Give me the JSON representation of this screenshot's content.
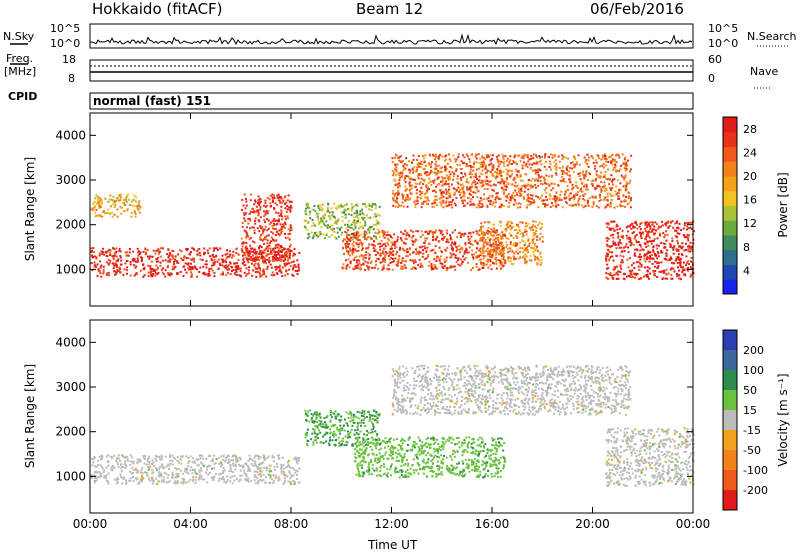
{
  "header": {
    "station": "Hokkaido (fitACF)",
    "beam": "Beam 12",
    "date": "06/Feb/2016"
  },
  "strip": {
    "nsky_label": "N.Sky",
    "nsearch_label": "N.Search",
    "noise_ticks": [
      "10^5",
      "10^0"
    ],
    "freq_label_1": "Freq.",
    "freq_label_2": "[MHz]",
    "freq_ticks": [
      "18",
      "8"
    ],
    "nave_label": "Nave",
    "nave_ticks": [
      "60",
      "0"
    ],
    "cpid_label": "CPID",
    "cpid_text": "normal (fast) 151"
  },
  "chart_data": [
    {
      "type": "heatmap",
      "panel": "power",
      "xlabel": "Time UT",
      "ylabel": "Slant Range [km]",
      "x_ticks": [
        "00:00",
        "04:00",
        "08:00",
        "12:00",
        "16:00",
        "20:00",
        "00:00"
      ],
      "xlim_hours": [
        0,
        24
      ],
      "y_ticks": [
        1000,
        2000,
        3000,
        4000
      ],
      "ylim": [
        180,
        4500
      ],
      "colorbar": {
        "label": "Power [dB]",
        "ticks": [
          4,
          8,
          12,
          16,
          20,
          24,
          28
        ],
        "range": [
          0,
          30
        ],
        "colors": [
          "#1a23e6",
          "#1e48b0",
          "#2e6e8e",
          "#3f8c5e",
          "#6aaa3e",
          "#a8c23a",
          "#f2c21e",
          "#f4a21a",
          "#f2821a",
          "#ef5a1a",
          "#e8301a",
          "#e11a1a"
        ]
      },
      "features": [
        {
          "t": [
            0.0,
            8.3
          ],
          "range": [
            850,
            1500
          ],
          "level": 28
        },
        {
          "t": [
            6.0,
            8.0
          ],
          "range": [
            1200,
            2700
          ],
          "level": 27
        },
        {
          "t": [
            0.0,
            2.0
          ],
          "range": [
            2200,
            2700
          ],
          "level": 18
        },
        {
          "t": [
            8.5,
            11.5
          ],
          "range": [
            1700,
            2500
          ],
          "level": 13
        },
        {
          "t": [
            10.0,
            16.5
          ],
          "range": [
            1000,
            1900
          ],
          "level": 25
        },
        {
          "t": [
            12.0,
            21.5
          ],
          "range": [
            2400,
            3600
          ],
          "level": 23
        },
        {
          "t": [
            15.5,
            18.0
          ],
          "range": [
            1100,
            2100
          ],
          "level": 21
        },
        {
          "t": [
            20.5,
            24.0
          ],
          "range": [
            800,
            2100
          ],
          "level": 28
        }
      ]
    },
    {
      "type": "heatmap",
      "panel": "velocity",
      "xlabel": "Time UT",
      "ylabel": "Slant Range [km]",
      "x_ticks": [
        "00:00",
        "04:00",
        "08:00",
        "12:00",
        "16:00",
        "20:00",
        "00:00"
      ],
      "xlim_hours": [
        0,
        24
      ],
      "y_ticks": [
        1000,
        2000,
        3000,
        4000
      ],
      "ylim": [
        180,
        4500
      ],
      "colorbar": {
        "label": "Velocity [m s⁻¹]",
        "ticks": [
          200,
          100,
          50,
          15,
          -15,
          -50,
          -100,
          -200
        ],
        "range": [
          -250,
          250
        ],
        "colors": [
          "#2b3fb0",
          "#3a6a9c",
          "#2f8a4e",
          "#6ac23e",
          "#bcbcbc",
          "#f2a21a",
          "#f2821a",
          "#ef5a1a",
          "#e11a1a"
        ]
      },
      "features": [
        {
          "t": [
            0.0,
            8.3
          ],
          "range": [
            850,
            1500
          ],
          "velocity": 0
        },
        {
          "t": [
            8.5,
            11.5
          ],
          "range": [
            1700,
            2500
          ],
          "velocity": 80
        },
        {
          "t": [
            10.5,
            16.5
          ],
          "range": [
            1000,
            1900
          ],
          "velocity": 60
        },
        {
          "t": [
            12.0,
            21.5
          ],
          "range": [
            2400,
            3500
          ],
          "velocity": 0
        },
        {
          "t": [
            20.5,
            24.0
          ],
          "range": [
            800,
            2100
          ],
          "velocity": 0
        }
      ]
    }
  ]
}
